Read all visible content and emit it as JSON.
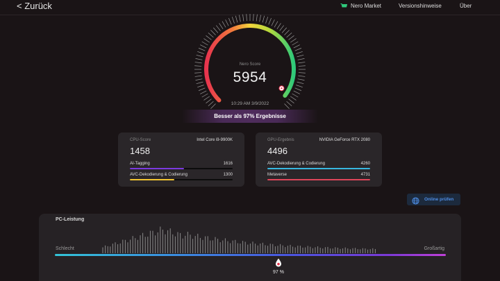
{
  "header": {
    "back_label": "< Zurück",
    "nav": [
      {
        "label": "Nero Market",
        "icon": "cart-icon"
      },
      {
        "label": "Versionshinweise"
      },
      {
        "label": "Über"
      }
    ]
  },
  "gauge": {
    "caption": "Nero Score",
    "score": "5954",
    "datetime": "10:29 AM 3/9/2022",
    "level": 0.97,
    "colors": [
      "#e8344e",
      "#f4d53c",
      "#2ec97a"
    ]
  },
  "banner": {
    "text": "Besser als 97% Ergebnisse"
  },
  "cpu_card": {
    "label": "CPU-Score",
    "device": "Intel Core i9-9900K",
    "score": "1458",
    "rows": [
      {
        "label": "AI-Tagging",
        "value": "1616",
        "fill": 0.53,
        "color": "#7b3ae0"
      },
      {
        "label": "AVC-Dekodierung & Codierung",
        "value": "1300",
        "fill": 0.43,
        "color": "#f2c531"
      }
    ]
  },
  "gpu_card": {
    "label": "GPU-Ergebnis",
    "device": "NVIDIA GeForce RTX 2080",
    "score": "4496",
    "rows": [
      {
        "label": "AVC-Dekodierung & Codierung",
        "value": "4260",
        "fill": 1.0,
        "color": "#38b8e0"
      },
      {
        "label": "Metaverse",
        "value": "4731",
        "fill": 1.0,
        "color": "#e0465a"
      }
    ]
  },
  "online_check": {
    "label": "Online prüfen",
    "icon": "globe-icon"
  },
  "performance": {
    "title": "PC-Leistung",
    "low_label": "Schlecht",
    "high_label": "Großartig",
    "percentile_label": "97 %",
    "percentile": 0.97
  }
}
